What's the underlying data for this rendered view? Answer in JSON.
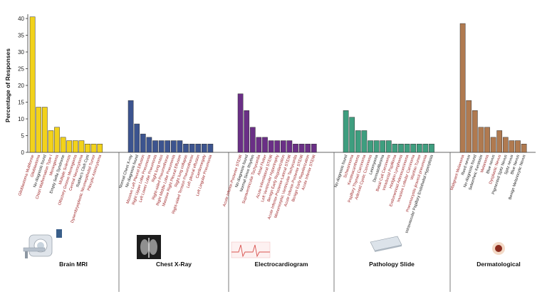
{
  "chart_data": {
    "type": "bar",
    "ylabel": "Percentage of Responses",
    "ylim": [
      0,
      40
    ],
    "yticks": [
      0,
      5,
      10,
      15,
      20,
      25,
      30,
      35,
      40
    ],
    "grid": false,
    "highlight_color": "#a0282a",
    "normal_color": "#222222",
    "groups": [
      {
        "name": "Brain MRI",
        "color": "#f2d21b",
        "icon": "mri-scanner-icon",
        "bars": [
          {
            "label": "Glioblastoma Multiforme",
            "value": 40.5,
            "highlight": true
          },
          {
            "label": "Glioblastoma",
            "value": 13.5,
            "highlight": true
          },
          {
            "label": "No diagnosis found",
            "value": 13.5,
            "highlight": false
          },
          {
            "label": "Chiari Malformation Type I",
            "value": 6.5,
            "highlight": true
          },
          {
            "label": "Meningioma",
            "value": 7.5,
            "highlight": true
          },
          {
            "label": "Empty Sella Syndrome",
            "value": 4.5,
            "highlight": false
          },
          {
            "label": "Multiple Sclerosis",
            "value": 3.5,
            "highlight": true
          },
          {
            "label": "Olfactory Groove Meningioma",
            "value": 3.5,
            "highlight": true
          },
          {
            "label": "Central Neurocytoma",
            "value": 3.5,
            "highlight": true
          },
          {
            "label": "Rathke's Cleft Cyst",
            "value": 2.5,
            "highlight": false
          },
          {
            "label": "Dysembryoplastic Neuroepithelial Tumor",
            "value": 2.5,
            "highlight": true
          },
          {
            "label": "Pilocytic Astrocytoma",
            "value": 2.5,
            "highlight": true
          }
        ]
      },
      {
        "name": "Chest X-Ray",
        "color": "#3c548f",
        "icon": "chest-xray-icon",
        "bars": [
          {
            "label": "Normal Chest X-ray",
            "value": 15.5,
            "highlight": false
          },
          {
            "label": "No diagnosis found",
            "value": 8.5,
            "highlight": false
          },
          {
            "label": "Massive Left Pleural Effusion",
            "value": 5.5,
            "highlight": true
          },
          {
            "label": "Right Upper Lobe Pneumonia",
            "value": 4.5,
            "highlight": true
          },
          {
            "label": "Left Lower Lobe Pneumonia",
            "value": 3.5,
            "highlight": true
          },
          {
            "label": "Right lung mass",
            "value": 3.5,
            "highlight": true
          },
          {
            "label": "Right-sided Pneumothorax",
            "value": 3.5,
            "highlight": true
          },
          {
            "label": "Right Middle Lobe Pneumonia",
            "value": 3.5,
            "highlight": true
          },
          {
            "label": "Massive Right Pleural Effusion",
            "value": 3.5,
            "highlight": true
          },
          {
            "label": "Right lung collapse",
            "value": 2.5,
            "highlight": true
          },
          {
            "label": "Right-sided Tension Pneumothorax",
            "value": 2.5,
            "highlight": true
          },
          {
            "label": "Left pleural effusion",
            "value": 2.5,
            "highlight": true
          },
          {
            "label": "Cardiomegaly",
            "value": 2.5,
            "highlight": true
          },
          {
            "label": "Left Lingular Pneumonia",
            "value": 2.5,
            "highlight": true
          }
        ]
      },
      {
        "name": "Electrocardiogram",
        "color": "#6a2f86",
        "icon": "ecg-trace-icon",
        "bars": [
          {
            "label": "Acute Inferior-Posterior STEMI",
            "value": 17.5,
            "highlight": true
          },
          {
            "label": "No diagnosis found",
            "value": 12.5,
            "highlight": false
          },
          {
            "label": "Normal Sinus Rhythm",
            "value": 7.5,
            "highlight": false
          },
          {
            "label": "Supraventricular Tachycardia",
            "value": 4.5,
            "highlight": true
          },
          {
            "label": "Atrial Flutter",
            "value": 4.5,
            "highlight": true
          },
          {
            "label": "Acute Inferolateral STEMI",
            "value": 3.5,
            "highlight": true
          },
          {
            "label": "Left Ventricular Hypertrophy",
            "value": 3.5,
            "highlight": true
          },
          {
            "label": "Benign Early Repolarization",
            "value": 3.5,
            "highlight": true
          },
          {
            "label": "Acute Inferior-Posterior-Lateral STEMI",
            "value": 3.5,
            "highlight": true
          },
          {
            "label": "Monomorphic Ventricular Tachycardia",
            "value": 2.5,
            "highlight": true
          },
          {
            "label": "Acute Inferior-Posterior STEMI",
            "value": 2.5,
            "highlight": true
          },
          {
            "label": "Benign Early Repolarization",
            "value": 2.5,
            "highlight": true
          },
          {
            "label": "Acute Inferior STEMI",
            "value": 2.5,
            "highlight": true
          }
        ]
      },
      {
        "name": "Pathology Slide",
        "color": "#3e9e7f",
        "icon": "glass-slide-icon",
        "bars": [
          {
            "label": "No diagnosis found",
            "value": 12.5,
            "highlight": false
          },
          {
            "label": "Schwannoma",
            "value": 10.5,
            "highlight": true
          },
          {
            "label": "Keratoacanthoma",
            "value": 6.5,
            "highlight": true
          },
          {
            "label": "Papillary Thyroid Carcinoma",
            "value": 6.5,
            "highlight": true
          },
          {
            "label": "Adenoid Cystic Carcinoma",
            "value": 3.5,
            "highlight": true
          },
          {
            "label": "Leiomyoma",
            "value": 3.5,
            "highlight": false
          },
          {
            "label": "Dermatofibroma",
            "value": 3.5,
            "highlight": false
          },
          {
            "label": "Basal Cell Carcinoma",
            "value": 3.5,
            "highlight": true
          },
          {
            "label": "Intraductal Papilloma",
            "value": 2.5,
            "highlight": true
          },
          {
            "label": "Hodgkin Lymphoma",
            "value": 2.5,
            "highlight": true
          },
          {
            "label": "Endometrioid Adenocarcinoma",
            "value": 2.5,
            "highlight": true
          },
          {
            "label": "Invasive Lobular Carcinoma",
            "value": 2.5,
            "highlight": true
          },
          {
            "label": "Warthin Tumor",
            "value": 2.5,
            "highlight": true
          },
          {
            "label": "Pneumocystis jirovecii pneumonia",
            "value": 2.5,
            "highlight": true
          },
          {
            "label": "Intravascular Papillary Endothelial Hyperplasia",
            "value": 2.5,
            "highlight": false
          }
        ]
      },
      {
        "name": "Dermatological",
        "color": "#b07a50",
        "icon": "skin-lesion-icon",
        "bars": [
          {
            "label": "Malignant Melanoma",
            "value": 38.5,
            "highlight": true
          },
          {
            "label": "Reed nevus",
            "value": 15.5,
            "highlight": false
          },
          {
            "label": "No diagnosis found",
            "value": 12.5,
            "highlight": false
          },
          {
            "label": "Seborrheic Keratosis",
            "value": 7.5,
            "highlight": false
          },
          {
            "label": "Melanoma",
            "value": 7.5,
            "highlight": true
          },
          {
            "label": "Blue nevus",
            "value": 4.5,
            "highlight": false
          },
          {
            "label": "Dysplastic Nevus",
            "value": 6.5,
            "highlight": true
          },
          {
            "label": "Pigmented Spitz Nevus",
            "value": 4.5,
            "highlight": false
          },
          {
            "label": "Spitz nevus",
            "value": 3.5,
            "highlight": false
          },
          {
            "label": "Blue Nevus",
            "value": 3.5,
            "highlight": false
          },
          {
            "label": "Benign Melanocytic Nevus",
            "value": 2.5,
            "highlight": false
          }
        ]
      }
    ]
  }
}
